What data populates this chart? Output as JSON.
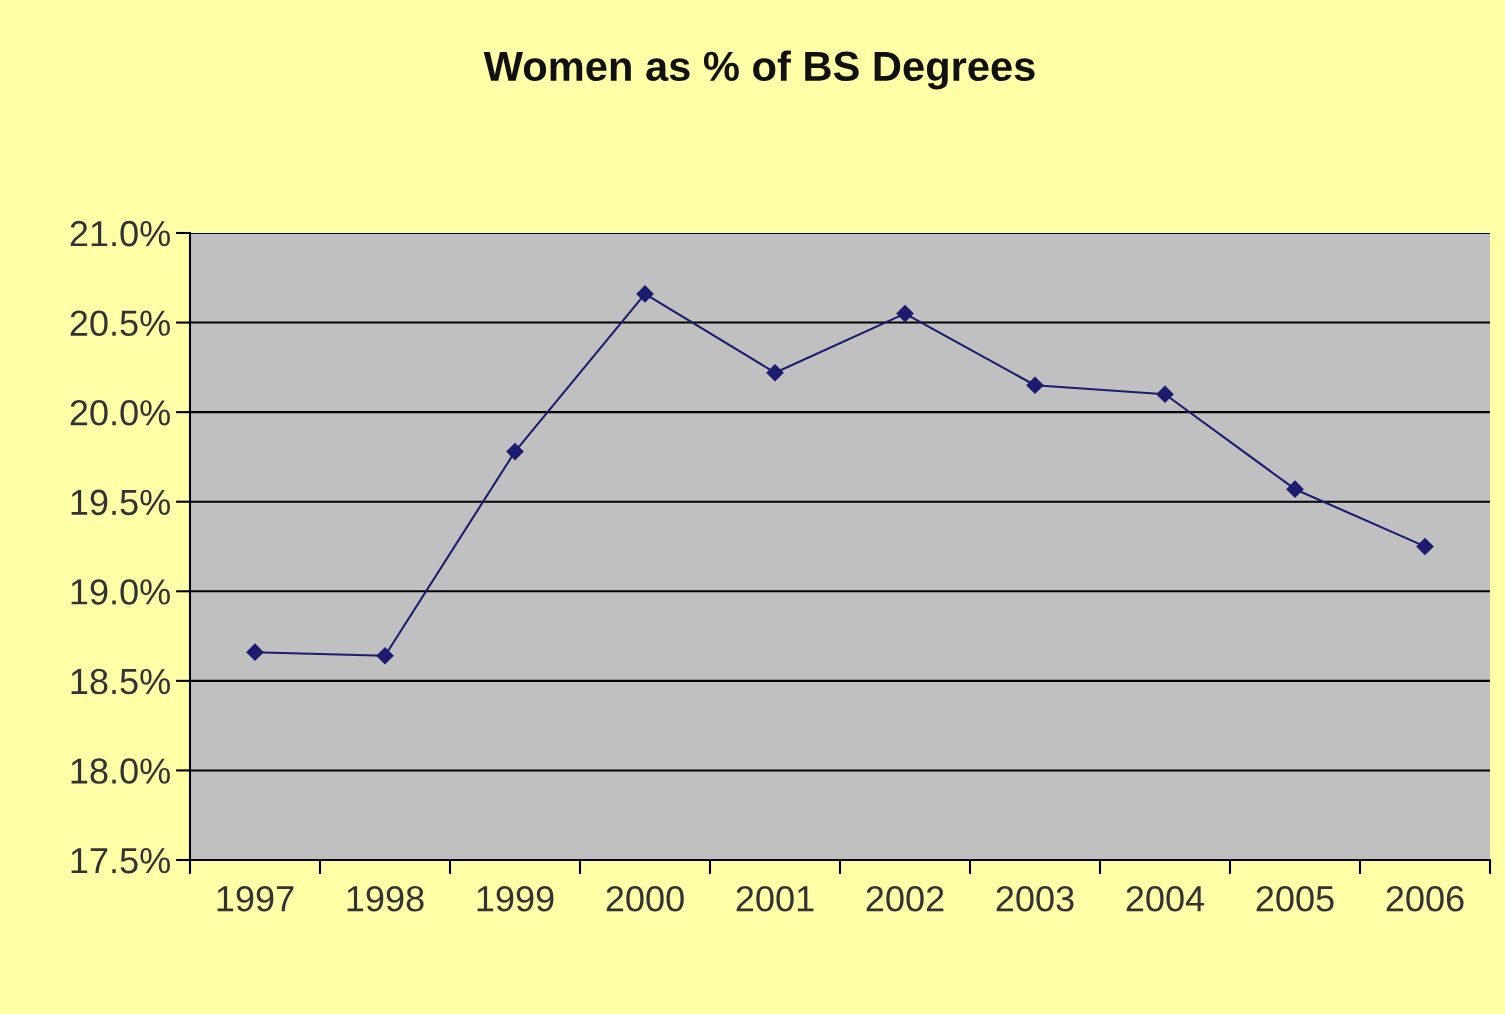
{
  "chart_data": {
    "type": "line",
    "title": "Women as % of BS Degrees",
    "categories": [
      "1997",
      "1998",
      "1999",
      "2000",
      "2001",
      "2002",
      "2003",
      "2004",
      "2005",
      "2006"
    ],
    "series": [
      {
        "color": "#1c1c6e",
        "values": [
          18.66,
          18.64,
          19.78,
          20.66,
          20.22,
          20.55,
          20.15,
          20.1,
          19.57,
          19.25
        ]
      }
    ],
    "ylim": [
      17.5,
      21.0
    ],
    "yticks": [
      {
        "value": 17.5,
        "label": "17.5%"
      },
      {
        "value": 18.0,
        "label": "18.0%"
      },
      {
        "value": 18.5,
        "label": "18.5%"
      },
      {
        "value": 19.0,
        "label": "19.0%"
      },
      {
        "value": 19.5,
        "label": "19.5%"
      },
      {
        "value": 20.0,
        "label": "20.0%"
      },
      {
        "value": 20.5,
        "label": "20.5%"
      },
      {
        "value": 21.0,
        "label": "21.0%"
      }
    ],
    "grid": "y",
    "legend": false,
    "marker": "diamond",
    "line_style": "solid"
  }
}
